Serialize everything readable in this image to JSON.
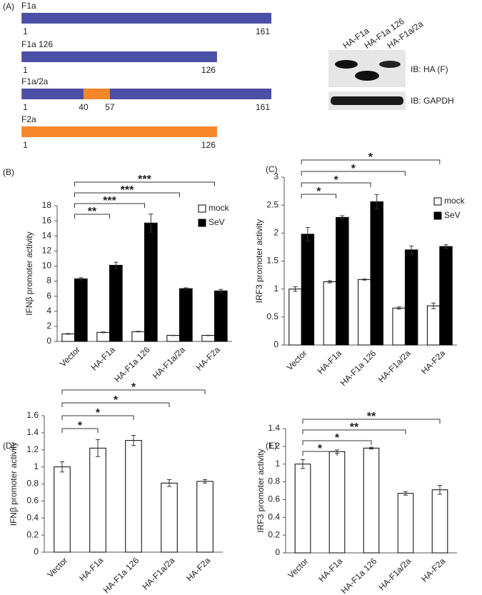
{
  "panel_a": {
    "label": "(A)",
    "constructs": [
      {
        "name": "F1a",
        "start": 1,
        "end": 161,
        "color": "#4b4fa6"
      },
      {
        "name": "F1a 126",
        "start": 1,
        "end": 126,
        "color": "#4b4fa6"
      },
      {
        "name": "F1a/2a",
        "start": 1,
        "end": 161,
        "color": "#4b4fa6",
        "insert": {
          "start": 40,
          "end": 57,
          "color": "#f5872a"
        }
      },
      {
        "name": "F2a",
        "start": 1,
        "end": 126,
        "color": "#f5872a"
      }
    ],
    "blot": {
      "lanes": [
        "HA-F1a",
        "HA-F1a 126",
        "HA-F1a/2a"
      ],
      "rows": [
        "IB: HA (F)",
        "IB: GAPDH"
      ]
    }
  },
  "chart_data": [
    {
      "type": "bar",
      "panel": "(B)",
      "y_label": "IFNβ promoter activity",
      "categories": [
        "Vector",
        "HA-F1a",
        "HA-F1a 126",
        "HA-F1a/2a",
        "HA-F2a"
      ],
      "series": [
        {
          "name": "mock",
          "color": "#ffffff",
          "values": [
            1.0,
            1.2,
            1.3,
            0.8,
            0.8
          ],
          "errors": [
            0.05,
            0.05,
            0.05,
            0.03,
            0.03
          ]
        },
        {
          "name": "SeV",
          "color": "#000000",
          "values": [
            8.3,
            10.1,
            15.7,
            7.0,
            6.7
          ],
          "errors": [
            0.15,
            0.4,
            1.2,
            0.1,
            0.2
          ]
        }
      ],
      "ylim": [
        0,
        18
      ],
      "yticks": [
        0,
        2,
        4,
        6,
        8,
        10,
        12,
        14,
        16,
        18
      ],
      "legend": "upper right",
      "annotations": [
        {
          "from": "Vector",
          "to": "HA-F1a",
          "label": "**"
        },
        {
          "from": "Vector",
          "to": "HA-F1a 126",
          "label": "***"
        },
        {
          "from": "Vector",
          "to": "HA-F1a/2a",
          "label": "***"
        },
        {
          "from": "Vector",
          "to": "HA-F2a",
          "label": "***"
        }
      ]
    },
    {
      "type": "bar",
      "panel": "(C)",
      "y_label": "IRF3 promoter activity",
      "categories": [
        "Vector",
        "HA-F1a",
        "HA-F1a 126",
        "HA-F1a/2a",
        "HA-F2a"
      ],
      "series": [
        {
          "name": "mock",
          "color": "#ffffff",
          "values": [
            1.0,
            1.13,
            1.17,
            0.66,
            0.7
          ],
          "errors": [
            0.04,
            0.02,
            0.01,
            0.02,
            0.05
          ]
        },
        {
          "name": "SeV",
          "color": "#000000",
          "values": [
            1.98,
            2.28,
            2.56,
            1.7,
            1.76
          ],
          "errors": [
            0.12,
            0.03,
            0.13,
            0.07,
            0.03
          ]
        }
      ],
      "ylim": [
        0,
        3
      ],
      "yticks": [
        0,
        0.5,
        1,
        1.5,
        2,
        2.5,
        3
      ],
      "legend": "upper right",
      "annotations": [
        {
          "from": "Vector",
          "to": "HA-F1a",
          "label": "*"
        },
        {
          "from": "Vector",
          "to": "HA-F1a 126",
          "label": "*"
        },
        {
          "from": "Vector",
          "to": "HA-F1a/2a",
          "label": "*"
        },
        {
          "from": "Vector",
          "to": "HA-F2a",
          "label": "*"
        }
      ]
    },
    {
      "type": "bar",
      "panel": "(D)",
      "y_label": "IFNβ promoter activity",
      "categories": [
        "Vector",
        "HA-F1a",
        "HA-F1a 126",
        "HA-F1a/2a",
        "HA-F2a"
      ],
      "series": [
        {
          "color": "#ffffff",
          "values": [
            1.0,
            1.22,
            1.31,
            0.81,
            0.83
          ],
          "errors": [
            0.06,
            0.1,
            0.06,
            0.04,
            0.02
          ]
        }
      ],
      "ylim": [
        0,
        1.6
      ],
      "yticks": [
        0,
        0.2,
        0.4,
        0.6,
        0.8,
        1,
        1.2,
        1.4,
        1.6
      ],
      "annotations": [
        {
          "from": "Vector",
          "to": "HA-F1a",
          "label": "*"
        },
        {
          "from": "Vector",
          "to": "HA-F1a 126",
          "label": "*"
        },
        {
          "from": "Vector",
          "to": "HA-F1a/2a",
          "label": "*"
        },
        {
          "from": "Vector",
          "to": "HA-F2a",
          "label": "*"
        }
      ]
    },
    {
      "type": "bar",
      "panel": "(E)",
      "y_label": "IRF3 promoter activity",
      "categories": [
        "Vector",
        "HA-F1a",
        "HA-F1a 126",
        "HA-F1a/2a",
        "HA-F2a"
      ],
      "series": [
        {
          "color": "#ffffff",
          "values": [
            1.0,
            1.14,
            1.18,
            0.67,
            0.71
          ],
          "errors": [
            0.05,
            0.02,
            0.01,
            0.02,
            0.05
          ]
        }
      ],
      "ylim": [
        0,
        1.4
      ],
      "yticks": [
        0,
        0.2,
        0.4,
        0.6,
        0.8,
        1,
        1.2,
        1.4
      ],
      "annotations": [
        {
          "from": "Vector",
          "to": "HA-F1a",
          "label": "*"
        },
        {
          "from": "Vector",
          "to": "HA-F1a 126",
          "label": "*"
        },
        {
          "from": "Vector",
          "to": "HA-F1a/2a",
          "label": "**"
        },
        {
          "from": "Vector",
          "to": "HA-F2a",
          "label": "**"
        }
      ]
    }
  ]
}
